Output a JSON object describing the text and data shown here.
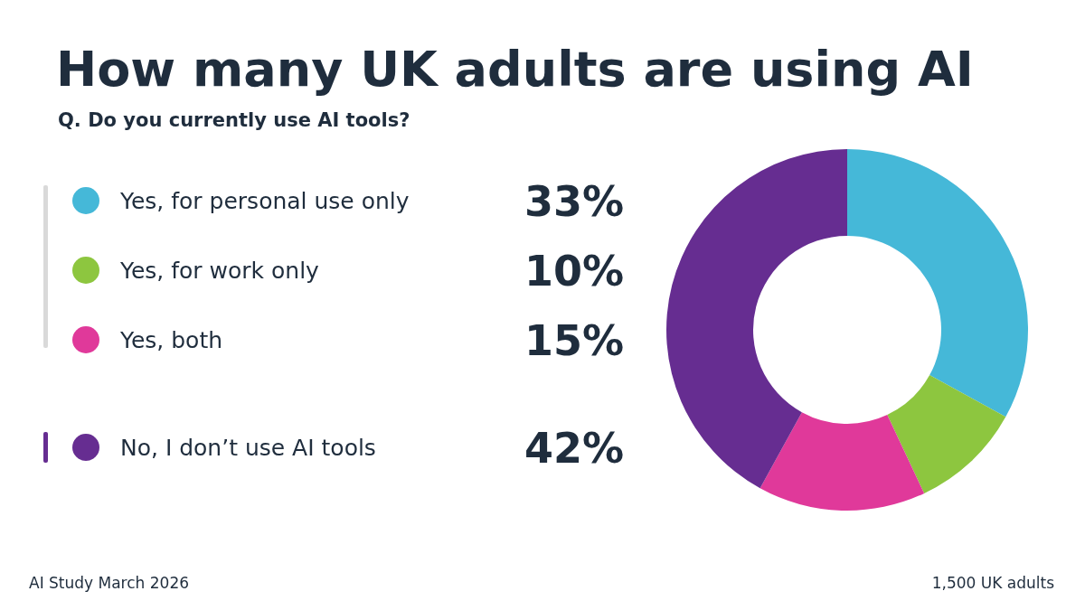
{
  "chart_data": {
    "type": "donut",
    "title": "How many UK adults are using AI",
    "subtitle": "Q. Do you currently use AI tools?",
    "categories": [
      "Yes, for personal use only",
      "Yes, for work only",
      "Yes, both",
      "No, I don’t use AI tools"
    ],
    "values": [
      33,
      10,
      15,
      42
    ],
    "colors": [
      "#45b8d8",
      "#8dc63f",
      "#e0399a",
      "#662d91"
    ],
    "value_labels": [
      "33%",
      "10%",
      "15%",
      "42%"
    ],
    "legend": "left",
    "annotations": [
      "AI Study March 2026",
      "1,500 UK adults"
    ]
  }
}
